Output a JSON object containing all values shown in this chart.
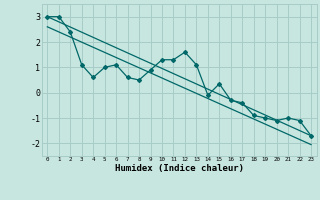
{
  "xlabel": "Humidex (Indice chaleur)",
  "bg_color": "#c8e6e0",
  "grid_color": "#a8ccc8",
  "line_color": "#006868",
  "data_x": [
    0,
    1,
    2,
    3,
    4,
    5,
    6,
    7,
    8,
    9,
    10,
    11,
    12,
    13,
    14,
    15,
    16,
    17,
    18,
    19,
    20,
    21,
    22,
    23
  ],
  "data_y": [
    3.0,
    3.0,
    2.4,
    1.1,
    0.6,
    1.0,
    1.1,
    0.6,
    0.5,
    0.9,
    1.3,
    1.3,
    1.6,
    1.1,
    -0.1,
    0.35,
    -0.3,
    -0.4,
    -0.9,
    -1.0,
    -1.1,
    -1.0,
    -1.1,
    -1.7
  ],
  "line1_x": [
    0,
    23
  ],
  "line1_y": [
    3.0,
    -1.7
  ],
  "line2_x": [
    0,
    23
  ],
  "line2_y": [
    2.6,
    -2.05
  ],
  "ylim": [
    -2.5,
    3.5
  ],
  "xlim": [
    -0.5,
    23.5
  ],
  "yticks": [
    -2,
    -1,
    0,
    1,
    2,
    3
  ],
  "xticks": [
    0,
    1,
    2,
    3,
    4,
    5,
    6,
    7,
    8,
    9,
    10,
    11,
    12,
    13,
    14,
    15,
    16,
    17,
    18,
    19,
    20,
    21,
    22,
    23
  ]
}
